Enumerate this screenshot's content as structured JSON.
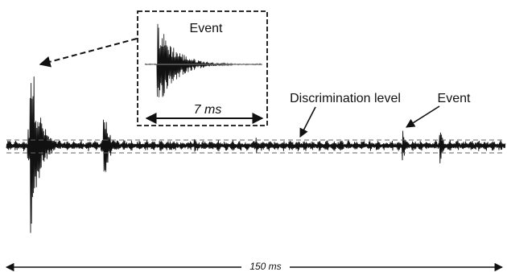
{
  "labels": {
    "inset_title": "Event",
    "inset_duration": "7 ms",
    "discrimination": "Discrimination level",
    "event_right": "Event",
    "scale": "150 ms"
  },
  "colors": {
    "signal": "#111111",
    "threshold": "#666666",
    "inset_box": "#111111"
  }
}
